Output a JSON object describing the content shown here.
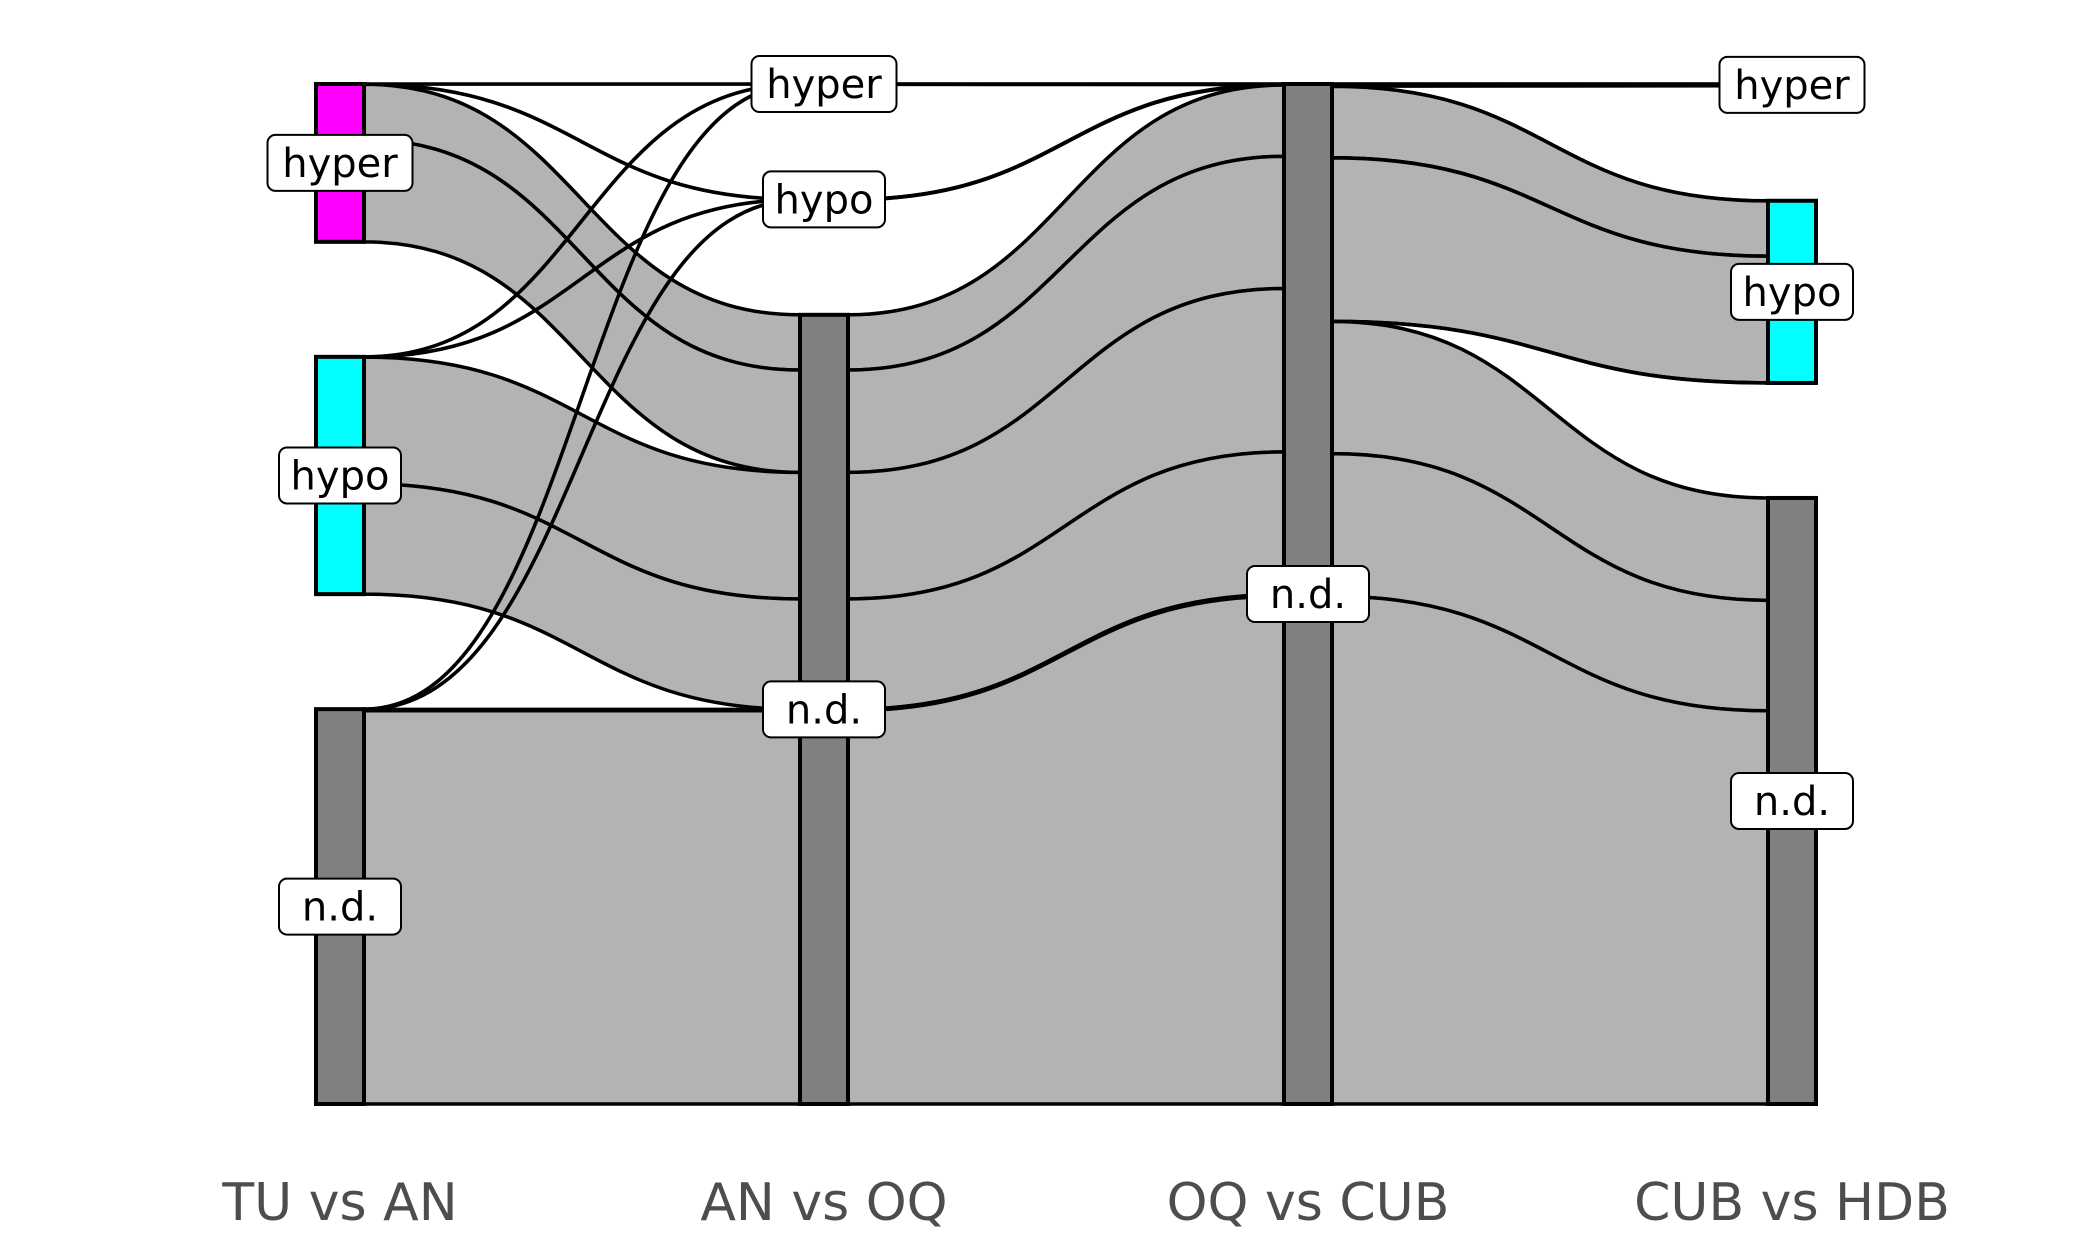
{
  "diagram": {
    "type": "alluvial",
    "axes": [
      "TU vs AN",
      "AN vs OQ",
      "OQ vs CUB",
      "CUB vs HDB"
    ],
    "categories": {
      "hyper": {
        "label": "hyper",
        "color": "#ff00ff"
      },
      "hypo": {
        "label": "hypo",
        "color": "#00ffff"
      },
      "nd": {
        "label": "n.d.",
        "color": "#808080"
      }
    },
    "flow_color": "#b3b3b3",
    "stratum_label_note": "strata listed per axis in visible order top to bottom",
    "strata": [
      [
        {
          "cat": "hyper",
          "label": "hyper"
        },
        {
          "cat": "hypo",
          "label": "hypo"
        },
        {
          "cat": "nd",
          "label": "n.d."
        }
      ],
      [
        {
          "cat": "hyper",
          "label": "hyper"
        },
        {
          "cat": "hypo",
          "label": "hypo"
        },
        {
          "cat": "nd",
          "label": "n.d."
        }
      ],
      [
        {
          "cat": "nd",
          "label": "n.d."
        }
      ],
      [
        {
          "cat": "hyper",
          "label": "hyper"
        },
        {
          "cat": "hypo",
          "label": "hypo"
        },
        {
          "cat": "nd",
          "label": "n.d."
        }
      ]
    ],
    "flows": [
      {
        "path": [
          "hyper",
          "hyper",
          "nd",
          "hyper"
        ],
        "value": 0.1
      },
      {
        "path": [
          "hyper",
          "hypo",
          "nd",
          "hypo"
        ],
        "value": 0.1
      },
      {
        "path": [
          "hyper",
          "nd",
          "nd",
          "hypo"
        ],
        "value": 41
      },
      {
        "path": [
          "hyper",
          "nd",
          "nd",
          "nd"
        ],
        "value": 76
      },
      {
        "path": [
          "hypo",
          "hyper",
          "nd",
          "hyper"
        ],
        "value": 0.1
      },
      {
        "path": [
          "hypo",
          "hypo",
          "nd",
          "hypo"
        ],
        "value": 0.1
      },
      {
        "path": [
          "hypo",
          "nd",
          "nd",
          "hypo"
        ],
        "value": 94
      },
      {
        "path": [
          "hypo",
          "nd",
          "nd",
          "nd"
        ],
        "value": 82
      },
      {
        "path": [
          "nd",
          "hyper",
          "nd",
          "hyper"
        ],
        "value": 0.1
      },
      {
        "path": [
          "nd",
          "hypo",
          "nd",
          "hypo"
        ],
        "value": 0.1
      },
      {
        "path": [
          "nd",
          "nd",
          "nd",
          "hyper"
        ],
        "value": 1
      },
      {
        "path": [
          "nd",
          "nd",
          "nd",
          "nd"
        ],
        "value": 292
      }
    ]
  }
}
